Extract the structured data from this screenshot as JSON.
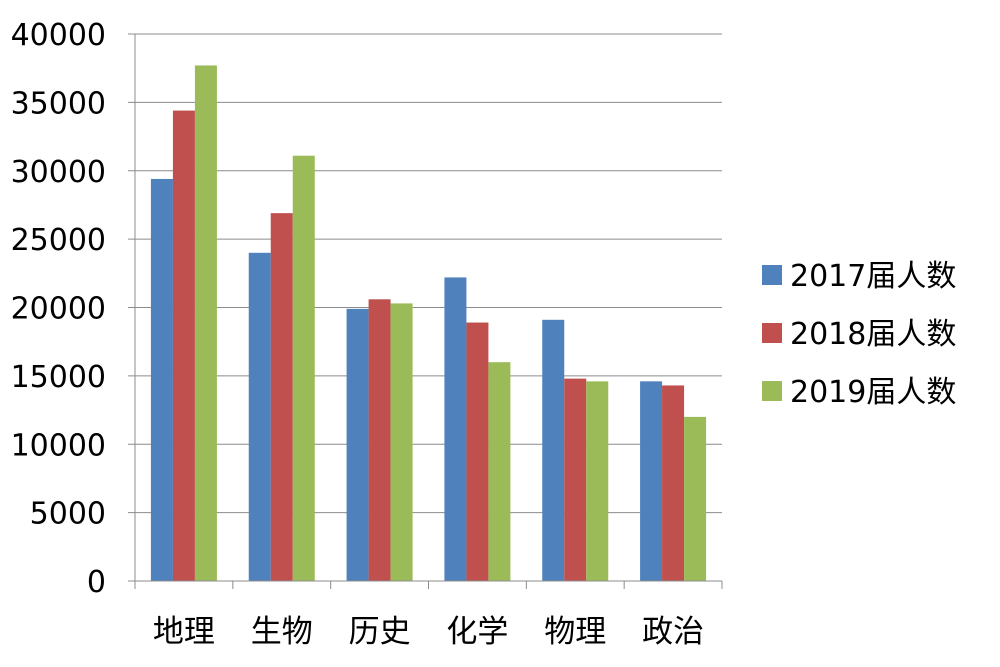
{
  "chart_data": {
    "type": "bar",
    "title": "",
    "xlabel": "",
    "ylabel": "",
    "categories": [
      "地理",
      "生物",
      "历史",
      "化学",
      "物理",
      "政治"
    ],
    "series": [
      {
        "name": "2017届人数",
        "color": "#4F81BD",
        "values": [
          29400,
          24000,
          19900,
          22200,
          19100,
          14600
        ]
      },
      {
        "name": "2018届人数",
        "color": "#C0504D",
        "values": [
          34400,
          26900,
          20600,
          18900,
          14800,
          14300
        ]
      },
      {
        "name": "2019届人数",
        "color": "#9BBB59",
        "values": [
          37700,
          31100,
          20300,
          16000,
          14600,
          12000
        ]
      }
    ],
    "ylim": [
      0,
      40000
    ],
    "y_ticks": [
      "0",
      "5000",
      "10000",
      "15000",
      "20000",
      "25000",
      "30000",
      "35000",
      "40000"
    ],
    "grid": true,
    "legend_position": "right"
  }
}
